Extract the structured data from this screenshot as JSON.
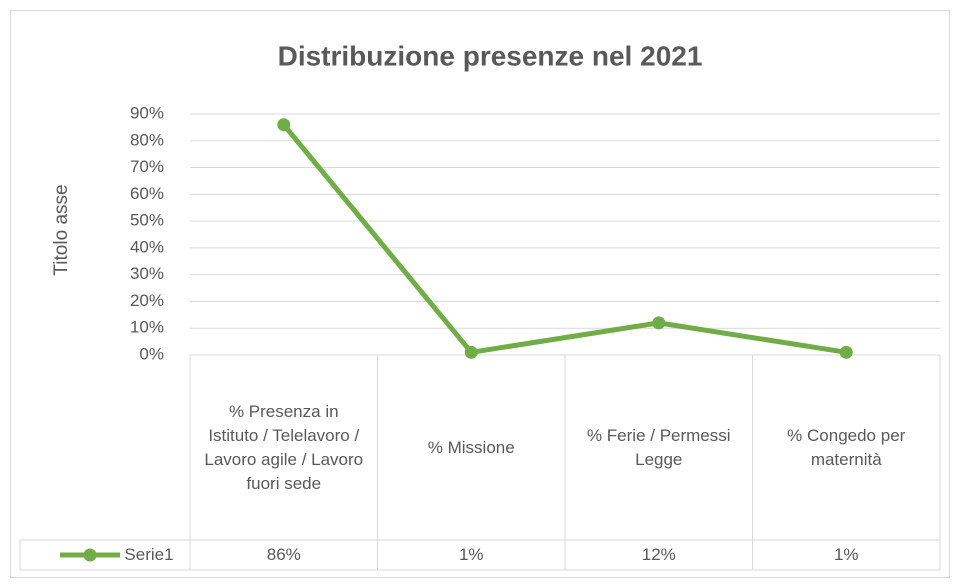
{
  "chart_data": {
    "type": "line",
    "title": "Distribuzione presenze nel 2021",
    "y_label": "Titolo asse",
    "categories": [
      "% Presenza in Istituto / Telelavoro / Lavoro agile / Lavoro fuori sede",
      "% Missione",
      "% Ferie / Permessi Legge",
      "% Congedo per maternità"
    ],
    "series": [
      {
        "name": "Serie1",
        "color": "#70ad47",
        "values": [
          86,
          1,
          12,
          1
        ],
        "value_labels": [
          "86%",
          "1%",
          "12%",
          "1%"
        ]
      }
    ],
    "ylim": [
      0,
      90
    ],
    "yticks": [
      {
        "value": 0,
        "label": "0%"
      },
      {
        "value": 10,
        "label": "10%"
      },
      {
        "value": 20,
        "label": "20%"
      },
      {
        "value": 30,
        "label": "30%"
      },
      {
        "value": 40,
        "label": "40%"
      },
      {
        "value": 50,
        "label": "50%"
      },
      {
        "value": 60,
        "label": "60%"
      },
      {
        "value": 70,
        "label": "70%"
      },
      {
        "value": 80,
        "label": "80%"
      },
      {
        "value": 90,
        "label": "90%"
      }
    ],
    "grid": true,
    "data_table": true
  }
}
